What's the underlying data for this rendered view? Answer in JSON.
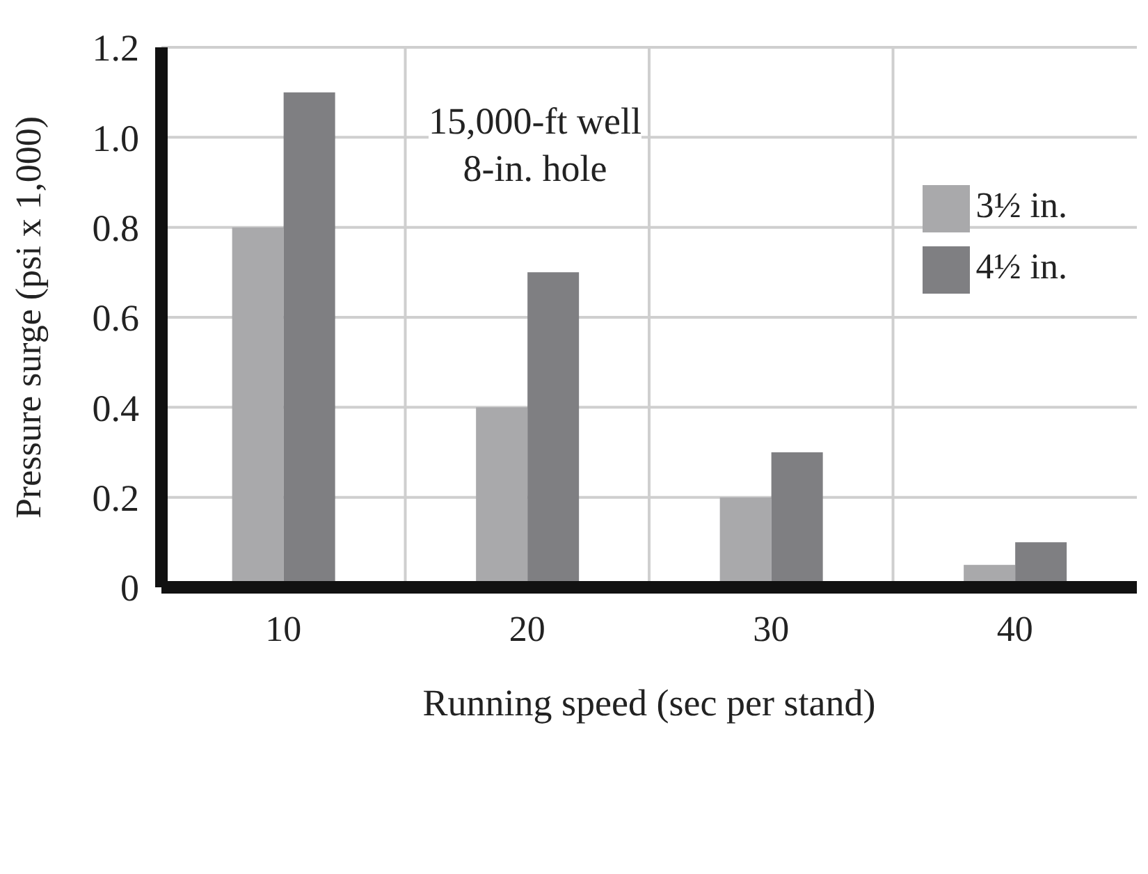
{
  "chart_data": {
    "type": "bar",
    "xlabel": "Running speed (sec per stand)",
    "ylabel": "Pressure surge (psi x 1,000)",
    "annotations": [
      "15,000-ft well",
      "8-in. hole"
    ],
    "categories": [
      "10",
      "20",
      "30",
      "40"
    ],
    "series": [
      {
        "name": "3½ in.",
        "color": "#a9a9ab",
        "values": [
          0.8,
          0.4,
          0.2,
          0.05
        ]
      },
      {
        "name": "4½ in.",
        "color": "#7f7f82",
        "values": [
          1.1,
          0.7,
          0.3,
          0.1
        ]
      }
    ],
    "ylim": [
      0,
      1.2
    ],
    "yticks": [
      0,
      0.2,
      0.4,
      0.6,
      0.8,
      {
        "value": 1,
        "label": "1.0"
      },
      1.2
    ],
    "grid": true,
    "legend": "top right"
  }
}
